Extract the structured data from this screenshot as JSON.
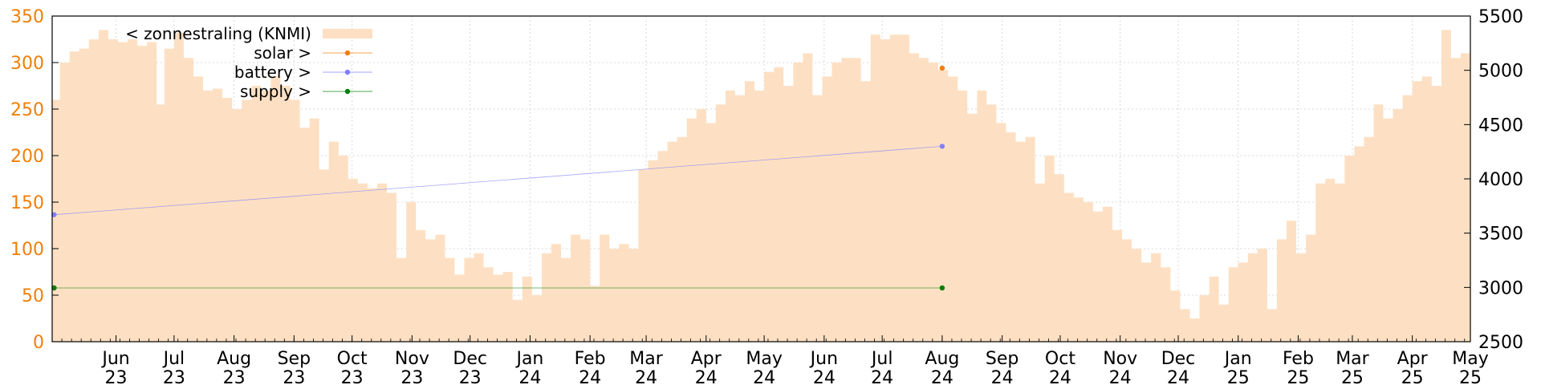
{
  "chart_data": {
    "type": "area",
    "grid": true,
    "legend_placement": "top-left",
    "x_range": [
      "2023-04-29",
      "2025-05-01"
    ],
    "y_left": {
      "range": [
        0,
        350
      ],
      "ticks": [
        "0",
        "50",
        "100",
        "150",
        "200",
        "250",
        "300",
        "350"
      ],
      "color": "#f07f0a"
    },
    "y_right": {
      "range": [
        2500,
        5500
      ],
      "ticks": [
        "2500",
        "3000",
        "3500",
        "4000",
        "4500",
        "5000",
        "5500"
      ],
      "color": "#000000"
    },
    "x_ticks": [
      {
        "date": "2023-06-01",
        "month": "Jun",
        "year": "23"
      },
      {
        "date": "2023-07-01",
        "month": "Jul",
        "year": "23"
      },
      {
        "date": "2023-08-01",
        "month": "Aug",
        "year": "23"
      },
      {
        "date": "2023-09-01",
        "month": "Sep",
        "year": "23"
      },
      {
        "date": "2023-10-01",
        "month": "Oct",
        "year": "23"
      },
      {
        "date": "2023-11-01",
        "month": "Nov",
        "year": "23"
      },
      {
        "date": "2023-12-01",
        "month": "Dec",
        "year": "23"
      },
      {
        "date": "2024-01-01",
        "month": "Jan",
        "year": "24"
      },
      {
        "date": "2024-02-01",
        "month": "Feb",
        "year": "24"
      },
      {
        "date": "2024-03-01",
        "month": "Mar",
        "year": "24"
      },
      {
        "date": "2024-04-01",
        "month": "Apr",
        "year": "24"
      },
      {
        "date": "2024-05-01",
        "month": "May",
        "year": "24"
      },
      {
        "date": "2024-06-01",
        "month": "Jun",
        "year": "24"
      },
      {
        "date": "2024-07-01",
        "month": "Jul",
        "year": "24"
      },
      {
        "date": "2024-08-01",
        "month": "Aug",
        "year": "24"
      },
      {
        "date": "2024-09-01",
        "month": "Sep",
        "year": "24"
      },
      {
        "date": "2024-10-01",
        "month": "Oct",
        "year": "24"
      },
      {
        "date": "2024-11-01",
        "month": "Nov",
        "year": "24"
      },
      {
        "date": "2024-12-01",
        "month": "Dec",
        "year": "24"
      },
      {
        "date": "2025-01-01",
        "month": "Jan",
        "year": "25"
      },
      {
        "date": "2025-02-01",
        "month": "Feb",
        "year": "25"
      },
      {
        "date": "2025-03-01",
        "month": "Mar",
        "year": "25"
      },
      {
        "date": "2025-04-01",
        "month": "Apr",
        "year": "25"
      },
      {
        "date": "2025-05-01",
        "month": "May",
        "year": "25"
      }
    ],
    "series": [
      {
        "name": "< zonnestraling (KNMI)",
        "axis": "left",
        "style": "area",
        "color": "#fde0c3",
        "points": [
          [
            "2023-04-29",
            260
          ],
          [
            "2023-05-03",
            300
          ],
          [
            "2023-05-08",
            312
          ],
          [
            "2023-05-13",
            315
          ],
          [
            "2023-05-18",
            325
          ],
          [
            "2023-05-23",
            335
          ],
          [
            "2023-05-28",
            325
          ],
          [
            "2023-06-02",
            322
          ],
          [
            "2023-06-07",
            325
          ],
          [
            "2023-06-12",
            318
          ],
          [
            "2023-06-17",
            322
          ],
          [
            "2023-06-22",
            255
          ],
          [
            "2023-06-26",
            315
          ],
          [
            "2023-07-01",
            332
          ],
          [
            "2023-07-06",
            305
          ],
          [
            "2023-07-11",
            285
          ],
          [
            "2023-07-16",
            270
          ],
          [
            "2023-07-21",
            272
          ],
          [
            "2023-07-26",
            262
          ],
          [
            "2023-07-31",
            250
          ],
          [
            "2023-08-05",
            260
          ],
          [
            "2023-08-10",
            275
          ],
          [
            "2023-08-15",
            270
          ],
          [
            "2023-08-20",
            285
          ],
          [
            "2023-08-25",
            275
          ],
          [
            "2023-08-30",
            260
          ],
          [
            "2023-09-04",
            230
          ],
          [
            "2023-09-09",
            240
          ],
          [
            "2023-09-14",
            185
          ],
          [
            "2023-09-19",
            215
          ],
          [
            "2023-09-24",
            200
          ],
          [
            "2023-09-29",
            175
          ],
          [
            "2023-10-04",
            170
          ],
          [
            "2023-10-09",
            165
          ],
          [
            "2023-10-14",
            170
          ],
          [
            "2023-10-19",
            160
          ],
          [
            "2023-10-24",
            90
          ],
          [
            "2023-10-29",
            150
          ],
          [
            "2023-11-03",
            120
          ],
          [
            "2023-11-08",
            110
          ],
          [
            "2023-11-13",
            115
          ],
          [
            "2023-11-18",
            90
          ],
          [
            "2023-11-23",
            72
          ],
          [
            "2023-11-28",
            90
          ],
          [
            "2023-12-03",
            95
          ],
          [
            "2023-12-08",
            80
          ],
          [
            "2023-12-13",
            72
          ],
          [
            "2023-12-18",
            75
          ],
          [
            "2023-12-23",
            45
          ],
          [
            "2023-12-28",
            70
          ],
          [
            "2024-01-02",
            50
          ],
          [
            "2024-01-07",
            95
          ],
          [
            "2024-01-12",
            105
          ],
          [
            "2024-01-17",
            90
          ],
          [
            "2024-01-22",
            115
          ],
          [
            "2024-01-27",
            110
          ],
          [
            "2024-02-01",
            60
          ],
          [
            "2024-02-06",
            115
          ],
          [
            "2024-02-11",
            100
          ],
          [
            "2024-02-16",
            105
          ],
          [
            "2024-02-21",
            100
          ],
          [
            "2024-02-26",
            185
          ],
          [
            "2024-03-02",
            195
          ],
          [
            "2024-03-07",
            205
          ],
          [
            "2024-03-12",
            215
          ],
          [
            "2024-03-17",
            220
          ],
          [
            "2024-03-22",
            240
          ],
          [
            "2024-03-27",
            250
          ],
          [
            "2024-04-01",
            235
          ],
          [
            "2024-04-06",
            255
          ],
          [
            "2024-04-11",
            270
          ],
          [
            "2024-04-16",
            265
          ],
          [
            "2024-04-21",
            280
          ],
          [
            "2024-04-26",
            270
          ],
          [
            "2024-05-01",
            290
          ],
          [
            "2024-05-06",
            295
          ],
          [
            "2024-05-11",
            275
          ],
          [
            "2024-05-16",
            300
          ],
          [
            "2024-05-21",
            310
          ],
          [
            "2024-05-26",
            265
          ],
          [
            "2024-05-31",
            285
          ],
          [
            "2024-06-05",
            300
          ],
          [
            "2024-06-10",
            305
          ],
          [
            "2024-06-15",
            305
          ],
          [
            "2024-06-20",
            280
          ],
          [
            "2024-06-25",
            330
          ],
          [
            "2024-06-30",
            325
          ],
          [
            "2024-07-05",
            330
          ],
          [
            "2024-07-10",
            330
          ],
          [
            "2024-07-15",
            310
          ],
          [
            "2024-07-20",
            305
          ],
          [
            "2024-07-25",
            300
          ],
          [
            "2024-07-30",
            292
          ],
          [
            "2024-08-04",
            285
          ],
          [
            "2024-08-09",
            270
          ],
          [
            "2024-08-14",
            245
          ],
          [
            "2024-08-19",
            270
          ],
          [
            "2024-08-24",
            255
          ],
          [
            "2024-08-29",
            235
          ],
          [
            "2024-09-03",
            225
          ],
          [
            "2024-09-08",
            215
          ],
          [
            "2024-09-13",
            220
          ],
          [
            "2024-09-18",
            170
          ],
          [
            "2024-09-23",
            200
          ],
          [
            "2024-09-28",
            180
          ],
          [
            "2024-10-03",
            160
          ],
          [
            "2024-10-08",
            155
          ],
          [
            "2024-10-13",
            150
          ],
          [
            "2024-10-18",
            140
          ],
          [
            "2024-10-23",
            145
          ],
          [
            "2024-10-28",
            120
          ],
          [
            "2024-11-02",
            110
          ],
          [
            "2024-11-07",
            100
          ],
          [
            "2024-11-12",
            85
          ],
          [
            "2024-11-17",
            95
          ],
          [
            "2024-11-22",
            80
          ],
          [
            "2024-11-27",
            55
          ],
          [
            "2024-12-02",
            35
          ],
          [
            "2024-12-07",
            25
          ],
          [
            "2024-12-12",
            50
          ],
          [
            "2024-12-17",
            70
          ],
          [
            "2024-12-22",
            40
          ],
          [
            "2024-12-27",
            80
          ],
          [
            "2025-01-01",
            85
          ],
          [
            "2025-01-06",
            95
          ],
          [
            "2025-01-11",
            100
          ],
          [
            "2025-01-16",
            35
          ],
          [
            "2025-01-21",
            110
          ],
          [
            "2025-01-26",
            130
          ],
          [
            "2025-01-31",
            95
          ],
          [
            "2025-02-05",
            115
          ],
          [
            "2025-02-10",
            170
          ],
          [
            "2025-02-15",
            175
          ],
          [
            "2025-02-20",
            170
          ],
          [
            "2025-02-25",
            200
          ],
          [
            "2025-03-02",
            210
          ],
          [
            "2025-03-07",
            220
          ],
          [
            "2025-03-12",
            255
          ],
          [
            "2025-03-17",
            240
          ],
          [
            "2025-03-22",
            250
          ],
          [
            "2025-03-27",
            265
          ],
          [
            "2025-04-01",
            280
          ],
          [
            "2025-04-06",
            285
          ],
          [
            "2025-04-11",
            275
          ],
          [
            "2025-04-16",
            335
          ],
          [
            "2025-04-21",
            305
          ],
          [
            "2025-04-26",
            310
          ],
          [
            "2025-05-01",
            300
          ]
        ]
      },
      {
        "name": "solar >",
        "axis": "right",
        "style": "line",
        "color": "#f07f0a",
        "points": [
          [
            "2024-08-01",
            5020
          ]
        ]
      },
      {
        "name": "battery >",
        "axis": "right",
        "style": "line",
        "color": "#8080ff",
        "points": [
          [
            "2023-04-30",
            3670
          ],
          [
            "2024-08-01",
            4300
          ]
        ]
      },
      {
        "name": "supply >",
        "axis": "right",
        "style": "line",
        "color": "#007f00",
        "points": [
          [
            "2023-04-30",
            2995
          ],
          [
            "2024-08-01",
            2995
          ]
        ]
      }
    ]
  }
}
